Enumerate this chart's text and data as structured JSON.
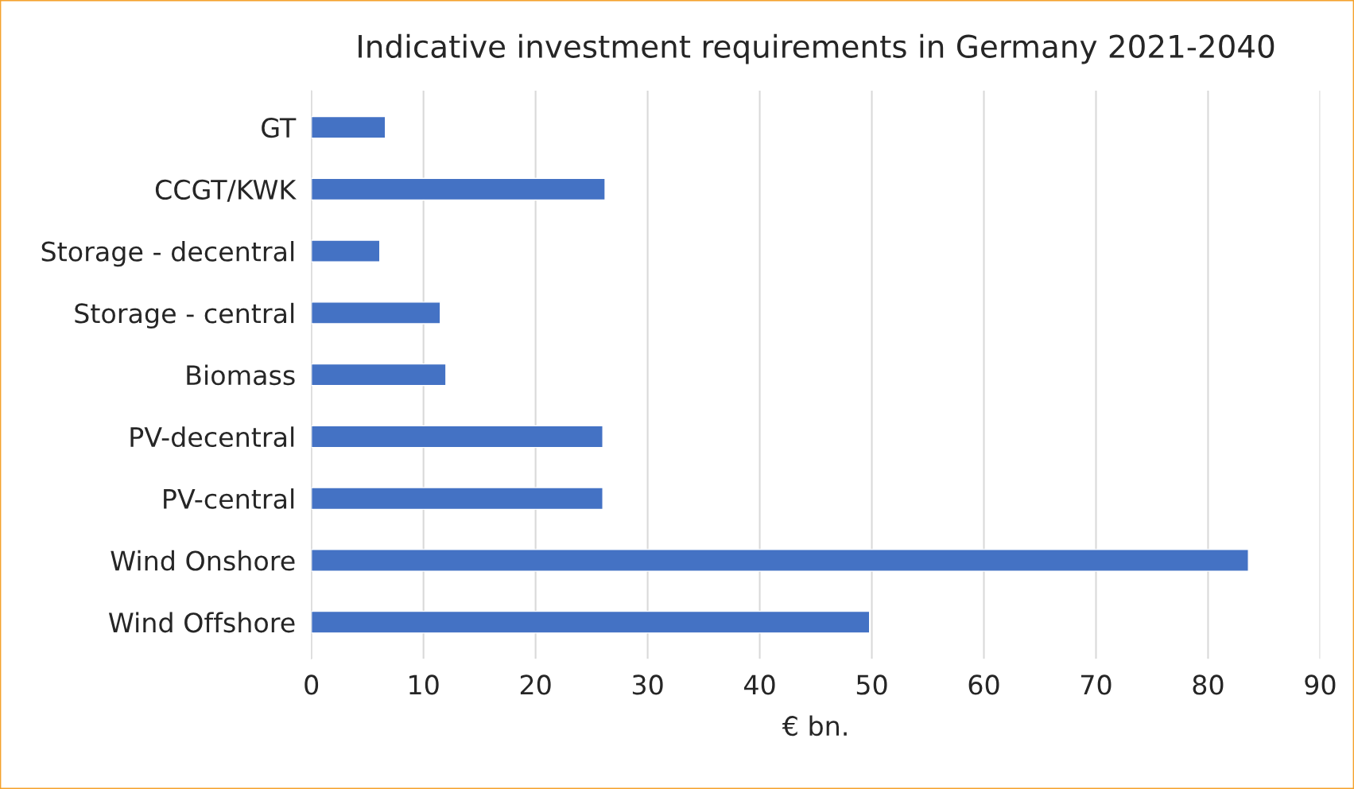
{
  "chart_data": {
    "type": "bar",
    "orientation": "horizontal",
    "title": "Indicative investment requirements in Germany 2021-2040",
    "xlabel": "€ bn.",
    "categories": [
      "GT",
      "CCGT/KWK",
      "Storage - decentral",
      "Storage - central",
      "Biomass",
      "PV-decentral",
      "PV-central",
      "Wind Onshore",
      "Wind Offshore"
    ],
    "values": [
      6.6,
      26.2,
      6.1,
      11.5,
      12.0,
      26.0,
      26.0,
      83.6,
      49.8
    ],
    "color": "#4472c4",
    "xlim": [
      0,
      90
    ],
    "xticks": [
      0,
      10,
      20,
      30,
      40,
      50,
      60,
      70,
      80,
      90
    ],
    "grid": "x"
  }
}
